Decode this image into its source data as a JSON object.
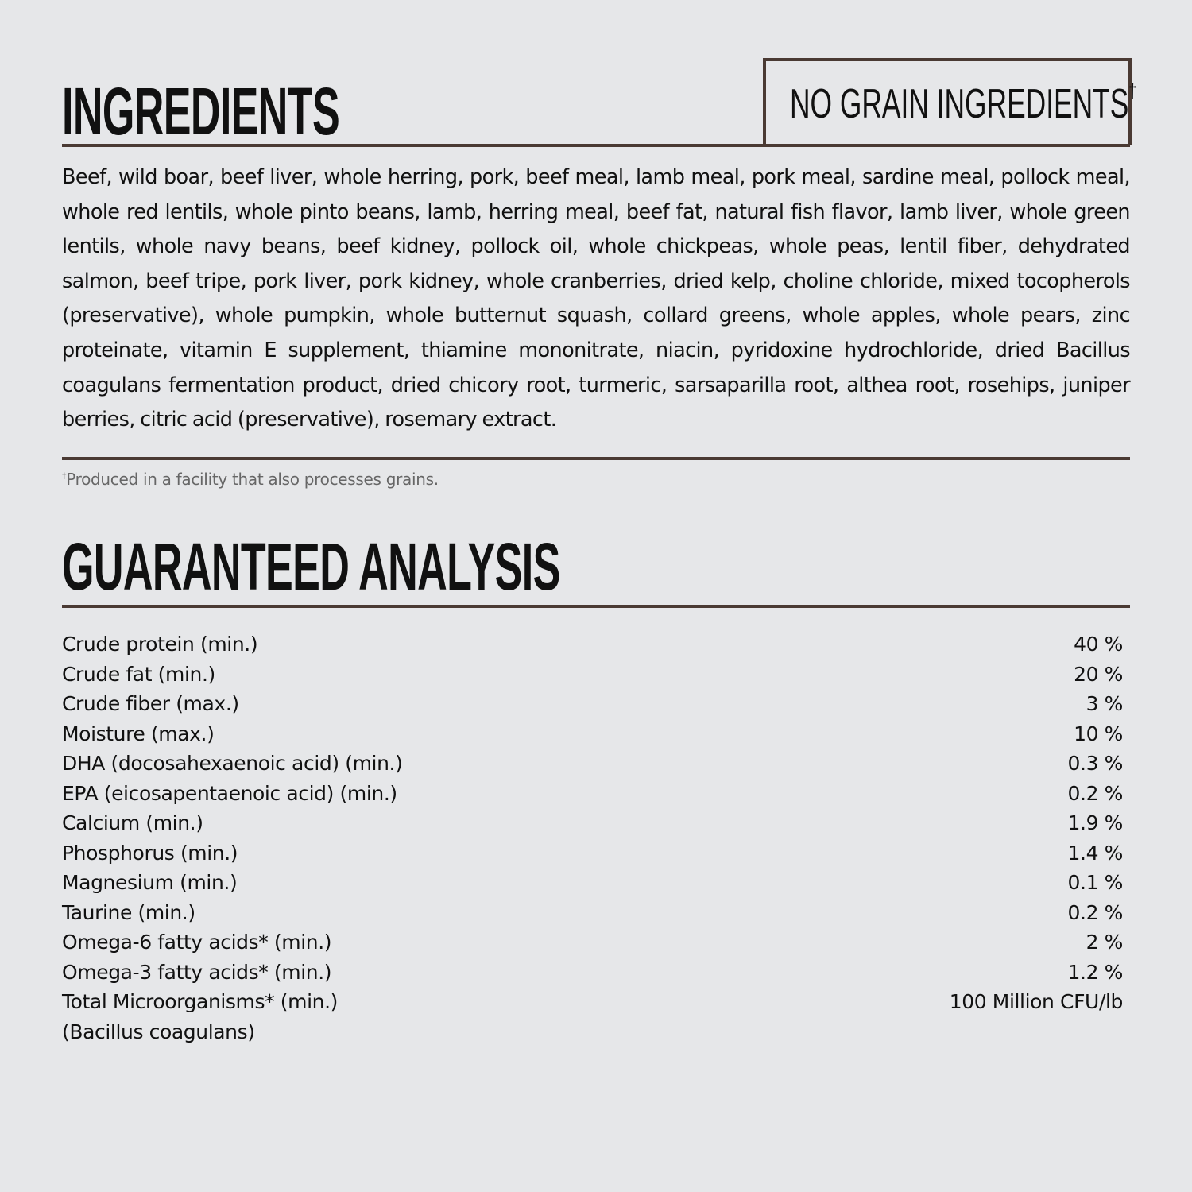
{
  "ingredients": {
    "title": "INGREDIENTS",
    "badge": "NO GRAIN INGREDIENTS",
    "badge_mark": "†",
    "text": "Beef, wild boar, beef liver, whole herring, pork, beef meal, lamb meal, pork meal, sardine meal, pollock meal, whole red lentils, whole pinto beans, lamb, herring meal, beef fat, natural fish flavor, lamb liver, whole green lentils, whole navy beans, beef kidney, pollock oil, whole chickpeas, whole peas, lentil fiber, dehydrated salmon, beef tripe, pork liver, pork kidney, whole cranberries, dried kelp, choline chloride, mixed tocopherols (preservative), whole pumpkin, whole butternut squash, collard greens, whole apples, whole pears, zinc proteinate, vitamin E supplement, thiamine mononitrate, niacin, pyridoxine hydrochloride, dried Bacillus coagulans fermentation product, dried chicory root, turmeric, sarsaparilla root, althea root, rosehips, juniper berries, citric acid (preservative), rosemary extract.",
    "footnote_mark": "†",
    "footnote": "Produced in a facility that also processes grains."
  },
  "analysis": {
    "title": "GUARANTEED ANALYSIS",
    "rows": [
      {
        "label": "Crude protein (min.)",
        "value": "40 %"
      },
      {
        "label": "Crude fat (min.)",
        "value": "20 %"
      },
      {
        "label": "Crude fiber (max.)",
        "value": "3 %"
      },
      {
        "label": "Moisture (max.)",
        "value": "10 %"
      },
      {
        "label": "DHA (docosahexaenoic acid) (min.)",
        "value": "0.3 %"
      },
      {
        "label": "EPA (eicosapentaenoic acid) (min.)",
        "value": "0.2 %"
      },
      {
        "label": "Calcium (min.)",
        "value": "1.9 %"
      },
      {
        "label": "Phosphorus (min.)",
        "value": "1.4 %"
      },
      {
        "label": "Magnesium (min.)",
        "value": "0.1 %"
      },
      {
        "label": "Taurine (min.)",
        "value": "0.2 %"
      },
      {
        "label": "Omega-6 fatty acids* (min.)",
        "value": "2 %"
      },
      {
        "label": "Omega-3 fatty acids* (min.)",
        "value": "1.2 %"
      },
      {
        "label": "Total Microorganisms* (min.)",
        "value": "100 Million CFU/lb",
        "sub": "(Bacillus coagulans)"
      }
    ]
  },
  "colors": {
    "background": "#e6e7e9",
    "rule": "#4a3a33",
    "text": "#111111"
  }
}
